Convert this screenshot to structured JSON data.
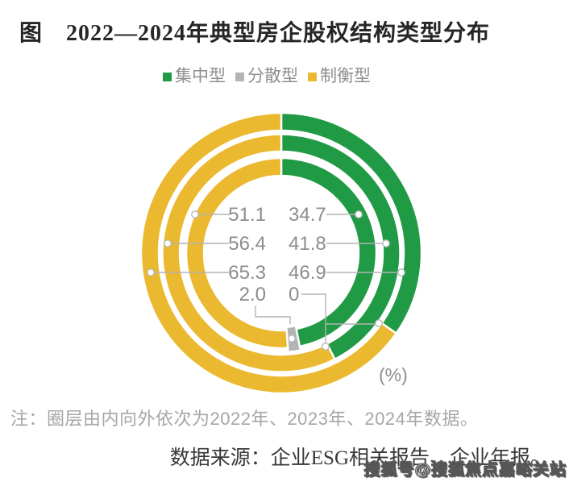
{
  "title": "图　2022—2024年典型房企股权结构类型分布",
  "legend": [
    {
      "label": "集中型",
      "color": "#219a45"
    },
    {
      "label": "分散型",
      "color": "#b4b4b4"
    },
    {
      "label": "制衡型",
      "color": "#ebb92f"
    }
  ],
  "chart_data": {
    "type": "donut",
    "title": "2022—2024年典型房企股权结构类型分布",
    "unit_label": "(%)",
    "legend_position": "top",
    "categories": [
      "集中型",
      "分散型",
      "制衡型"
    ],
    "colors": [
      "#219a45",
      "#b4b4b4",
      "#ebb92f"
    ],
    "ring_order": "圈层由内向外依次为2022年、2023年、2024年",
    "series": [
      {
        "name": "2022",
        "ring": "inner",
        "values": [
          46.9,
          2.0,
          51.1
        ]
      },
      {
        "name": "2023",
        "ring": "middle",
        "values": [
          41.8,
          0,
          56.4
        ]
      },
      {
        "name": "2024",
        "ring": "outer",
        "values": [
          34.7,
          0,
          65.3
        ]
      }
    ],
    "value_labels": {
      "left": [
        "51.1",
        "56.4",
        "65.3",
        "2.0"
      ],
      "right": [
        "34.7",
        "41.8",
        "46.9",
        "0"
      ]
    }
  },
  "note": "注：圈层由内向外依次为2022年、2023年、2024年数据。",
  "source": "数据来源：企业ESG相关报告、企业年报。",
  "watermark": "搜狐号@搜狐焦点嘉峪关站"
}
